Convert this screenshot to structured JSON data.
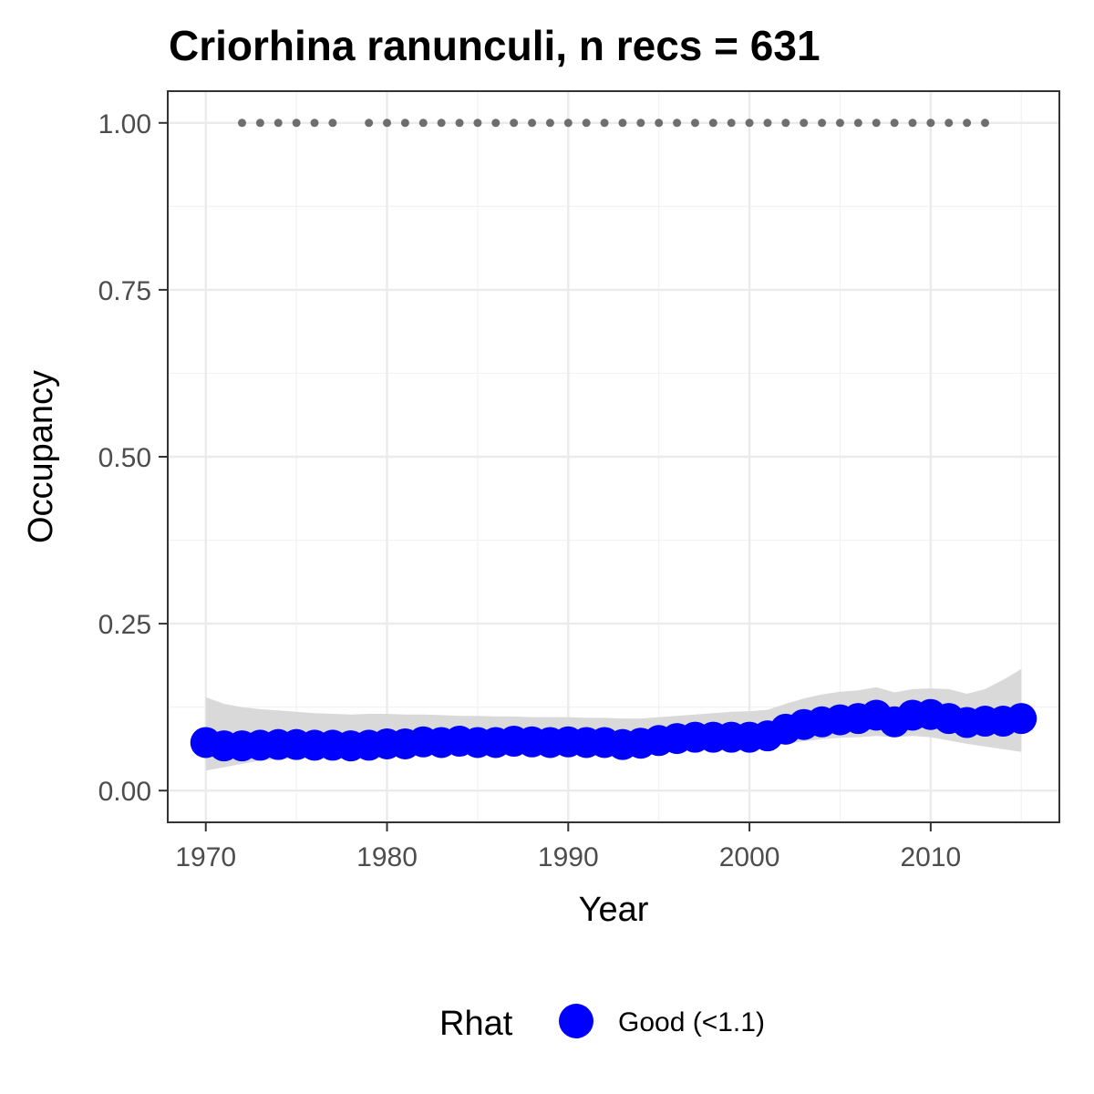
{
  "chart_data": {
    "type": "line",
    "title": "Criorhina ranunculi, n recs = 631",
    "xlabel": "Year",
    "ylabel": "Occupancy",
    "xlim": [
      1967.9,
      2017.1
    ],
    "ylim": [
      -0.0475,
      1.0475
    ],
    "x_ticks": [
      1970,
      1980,
      1990,
      2000,
      2010
    ],
    "x_tick_labels": [
      "1970",
      "1980",
      "1990",
      "2000",
      "2010"
    ],
    "y_ticks": [
      0,
      0.25,
      0.5,
      0.75,
      1.0
    ],
    "y_tick_labels": [
      "0.00",
      "0.25",
      "0.50",
      "0.75",
      "1.00"
    ],
    "grid": true,
    "x": [
      1970,
      1971,
      1972,
      1973,
      1974,
      1975,
      1976,
      1977,
      1978,
      1979,
      1980,
      1981,
      1982,
      1983,
      1984,
      1985,
      1986,
      1987,
      1988,
      1989,
      1990,
      1991,
      1992,
      1993,
      1994,
      1995,
      1996,
      1997,
      1998,
      1999,
      2000,
      2001,
      2002,
      2003,
      2004,
      2005,
      2006,
      2007,
      2008,
      2009,
      2010,
      2011,
      2012,
      2013,
      2014,
      2015
    ],
    "series": [
      {
        "name": "Good (<1.1)",
        "color": "#0000ff",
        "values": [
          0.072,
          0.067,
          0.067,
          0.068,
          0.069,
          0.069,
          0.068,
          0.068,
          0.067,
          0.068,
          0.07,
          0.07,
          0.073,
          0.072,
          0.074,
          0.072,
          0.072,
          0.074,
          0.073,
          0.072,
          0.073,
          0.072,
          0.072,
          0.069,
          0.071,
          0.075,
          0.078,
          0.08,
          0.08,
          0.08,
          0.08,
          0.082,
          0.092,
          0.099,
          0.103,
          0.106,
          0.108,
          0.113,
          0.103,
          0.113,
          0.114,
          0.108,
          0.102,
          0.104,
          0.104,
          0.108
        ]
      }
    ],
    "band": {
      "color": "#d9d9d9",
      "lower": [
        0.03,
        0.035,
        0.04,
        0.045,
        0.047,
        0.048,
        0.049,
        0.05,
        0.05,
        0.051,
        0.052,
        0.053,
        0.054,
        0.055,
        0.056,
        0.056,
        0.057,
        0.057,
        0.058,
        0.058,
        0.058,
        0.058,
        0.058,
        0.057,
        0.058,
        0.06,
        0.062,
        0.064,
        0.065,
        0.065,
        0.065,
        0.066,
        0.07,
        0.074,
        0.077,
        0.079,
        0.08,
        0.082,
        0.08,
        0.082,
        0.08,
        0.075,
        0.07,
        0.066,
        0.062,
        0.058
      ],
      "upper": [
        0.14,
        0.13,
        0.125,
        0.122,
        0.12,
        0.118,
        0.116,
        0.115,
        0.114,
        0.115,
        0.115,
        0.114,
        0.114,
        0.113,
        0.112,
        0.112,
        0.111,
        0.111,
        0.11,
        0.11,
        0.11,
        0.109,
        0.109,
        0.108,
        0.108,
        0.11,
        0.112,
        0.114,
        0.116,
        0.118,
        0.119,
        0.121,
        0.13,
        0.138,
        0.144,
        0.148,
        0.15,
        0.155,
        0.147,
        0.152,
        0.153,
        0.152,
        0.145,
        0.152,
        0.166,
        0.182
      ]
    },
    "records": {
      "color": "#6e6e6e",
      "y": 1.0,
      "x": [
        1972,
        1973,
        1974,
        1975,
        1976,
        1977,
        1979,
        1980,
        1981,
        1982,
        1983,
        1984,
        1985,
        1986,
        1987,
        1988,
        1989,
        1990,
        1991,
        1992,
        1993,
        1994,
        1995,
        1996,
        1997,
        1998,
        1999,
        2000,
        2001,
        2002,
        2003,
        2004,
        2005,
        2006,
        2007,
        2008,
        2009,
        2010,
        2011,
        2012,
        2013
      ]
    },
    "legend": {
      "title": "Rhat",
      "position": "bottom",
      "items": [
        {
          "label": "Good (<1.1)",
          "color": "#0000ff"
        }
      ]
    }
  }
}
